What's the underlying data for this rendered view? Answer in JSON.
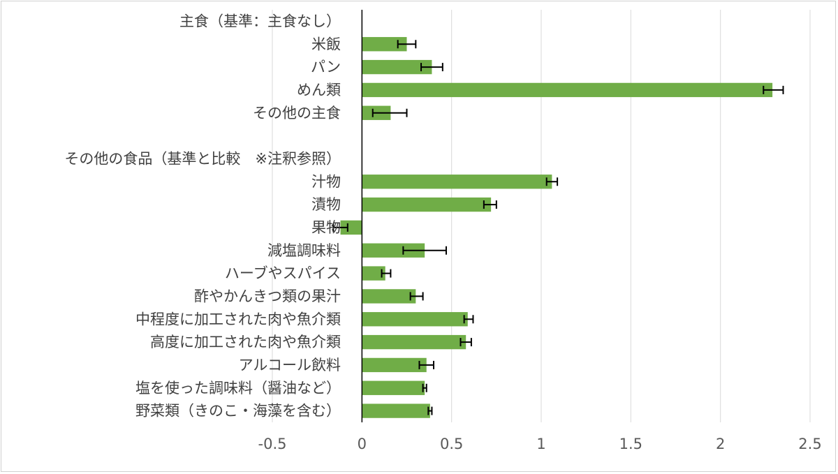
{
  "chart_data": {
    "type": "bar",
    "orientation": "horizontal",
    "title": "",
    "xlabel": "",
    "ylabel": "",
    "xlim": [
      -0.5,
      2.5
    ],
    "xticks": [
      -0.5,
      0,
      0.5,
      1,
      1.5,
      2,
      2.5
    ],
    "xtick_labels": [
      "-0.5",
      "0",
      "0.5",
      "1",
      "1.5",
      "2",
      "2.5"
    ],
    "grid": "vertical",
    "bar_color": "#70AD47",
    "error_bar_color": "#000000",
    "axis_line_color": "#000000",
    "grid_color": "#d9d9d9",
    "tick_label_color": "#595959",
    "category_label_color": "#404040",
    "categories": [
      "主食（基準：主食なし）",
      "米飯",
      "パン",
      "めん類",
      "その他の主食",
      "",
      "その他の食品（基準と比較　※注釈参照）",
      "汁物",
      "漬物",
      "果物",
      "減塩調味料",
      "ハーブやスパイス",
      "酢やかんきつ類の果汁",
      "中程度に加工された肉や魚介類",
      "高度に加工された肉や魚介類",
      "アルコール飲料",
      "塩を使った調味料（醤油など）",
      "野菜類（きのこ・海藻を含む）"
    ],
    "values": [
      null,
      0.25,
      0.39,
      2.29,
      0.16,
      null,
      null,
      1.06,
      0.72,
      -0.12,
      0.35,
      0.13,
      0.3,
      0.59,
      0.58,
      0.36,
      0.35,
      0.38
    ],
    "error_low": [
      null,
      0.2,
      0.33,
      2.24,
      0.06,
      null,
      null,
      1.03,
      0.68,
      -0.16,
      0.23,
      0.11,
      0.27,
      0.57,
      0.55,
      0.32,
      0.34,
      0.37
    ],
    "error_high": [
      null,
      0.3,
      0.45,
      2.35,
      0.25,
      null,
      null,
      1.09,
      0.75,
      -0.08,
      0.47,
      0.16,
      0.34,
      0.62,
      0.61,
      0.4,
      0.36,
      0.39
    ]
  }
}
